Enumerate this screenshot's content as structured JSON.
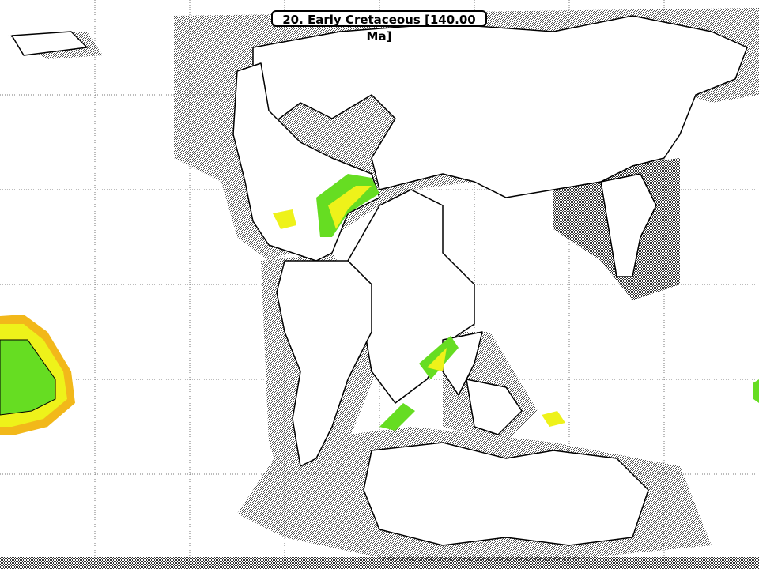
{
  "map": {
    "title": "20. Early Cretaceous [140.00 Ma]",
    "colors": {
      "land": "#ffffff",
      "coastline": "#000000",
      "shelf_stipple": "#8a8a8a",
      "grid": "#777777",
      "climate_green": "#66dd22",
      "climate_yellow": "#eef21a",
      "climate_orange": "#f2b81a"
    }
  }
}
